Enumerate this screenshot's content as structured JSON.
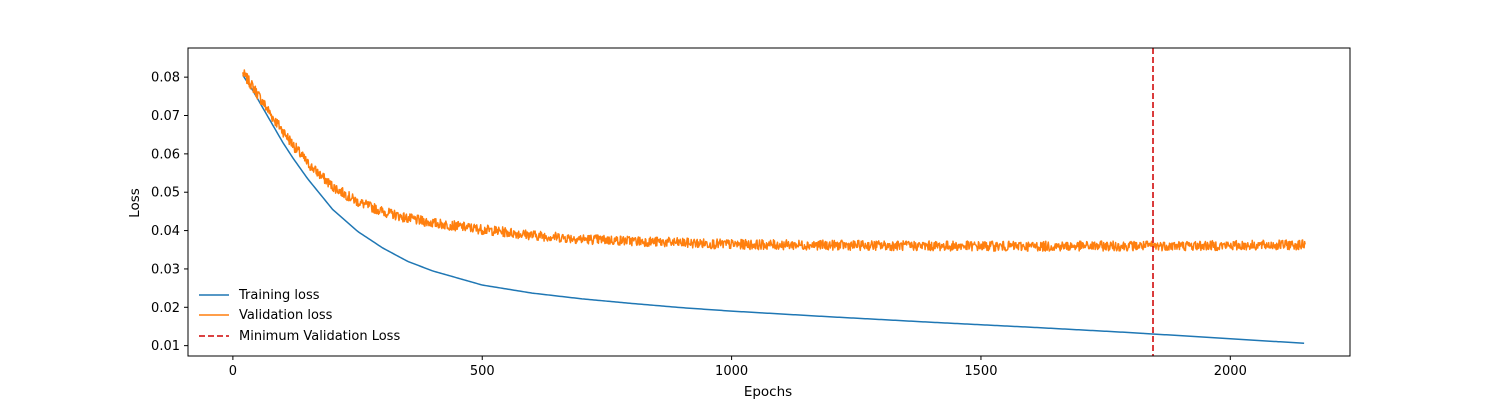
{
  "chart_data": {
    "type": "line",
    "title": "",
    "xlabel": "Epochs",
    "ylabel": "Loss",
    "xlim": [
      -90,
      2240
    ],
    "ylim": [
      0.0073,
      0.0876
    ],
    "x_ticks": [
      0,
      500,
      1000,
      1500,
      2000
    ],
    "y_ticks": [
      0.01,
      0.02,
      0.03,
      0.04,
      0.05,
      0.06,
      0.07,
      0.08
    ],
    "x_tick_labels": [
      "0",
      "500",
      "1000",
      "1500",
      "2000"
    ],
    "y_tick_labels": [
      "0.01",
      "0.02",
      "0.03",
      "0.04",
      "0.05",
      "0.06",
      "0.07",
      "0.08"
    ],
    "grid": false,
    "legend_placement": "lower-left",
    "legend_frame": false,
    "series": [
      {
        "name": "Training loss",
        "color": "#1f77b4",
        "style": "solid",
        "x": [
          20,
          40,
          60,
          80,
          100,
          120,
          150,
          200,
          250,
          300,
          350,
          400,
          500,
          600,
          700,
          800,
          900,
          1000,
          1200,
          1400,
          1600,
          1800,
          2000,
          2150
        ],
        "values": [
          0.0805,
          0.0765,
          0.072,
          0.0675,
          0.063,
          0.059,
          0.0535,
          0.0455,
          0.0398,
          0.0355,
          0.032,
          0.0295,
          0.0258,
          0.0237,
          0.0222,
          0.021,
          0.0199,
          0.019,
          0.0175,
          0.0161,
          0.0148,
          0.0134,
          0.0118,
          0.0106
        ]
      },
      {
        "name": "Validation loss",
        "color": "#ff7f0e",
        "style": "solid",
        "x": [
          20,
          40,
          60,
          80,
          100,
          120,
          150,
          200,
          250,
          300,
          350,
          400,
          500,
          600,
          700,
          800,
          900,
          1000,
          1200,
          1400,
          1600,
          1800,
          2000,
          2150
        ],
        "values": [
          0.081,
          0.0775,
          0.0735,
          0.0695,
          0.066,
          0.0625,
          0.0575,
          0.0515,
          0.0475,
          0.045,
          0.0432,
          0.042,
          0.0403,
          0.0388,
          0.0378,
          0.0373,
          0.0368,
          0.0364,
          0.0362,
          0.036,
          0.0359,
          0.036,
          0.0361,
          0.0363
        ],
        "noise_amplitude": 0.0013
      }
    ],
    "vertical_lines": [
      {
        "name": "Minimum Validation Loss",
        "color": "#d62728",
        "style": "dashed",
        "x": 1845
      }
    ]
  }
}
